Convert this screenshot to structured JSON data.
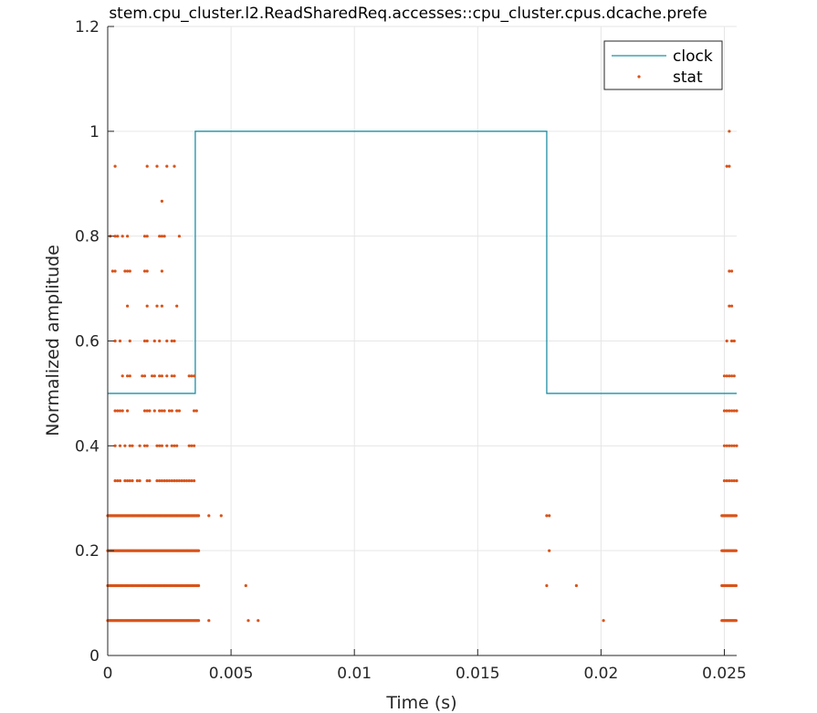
{
  "chart_data": {
    "type": "line",
    "title": "stem.cpu_cluster.l2.ReadSharedReq.accesses::cpu_cluster.cpus.dcache.prefe",
    "xlabel": "Time (s)",
    "ylabel": "Normalized amplitude",
    "xlim": [
      0,
      0.0255
    ],
    "ylim": [
      0,
      1.2
    ],
    "x_ticks": [
      0,
      0.005,
      0.01,
      0.015,
      0.02,
      0.025
    ],
    "x_tick_labels": [
      "0",
      "0.005",
      "0.01",
      "0.015",
      "0.02",
      "0.025"
    ],
    "y_ticks": [
      0,
      0.2,
      0.4,
      0.6,
      0.8,
      1,
      1.2
    ],
    "y_tick_labels": [
      "0",
      "0.2",
      "0.4",
      "0.6",
      "0.8",
      "1",
      "1.2"
    ],
    "grid": true,
    "legend_position": "top-right",
    "series": [
      {
        "name": "clock",
        "style": "line",
        "color": "#1f8fa3",
        "x": [
          0,
          0.00355,
          0.00355,
          0.0178,
          0.0178,
          0.0255
        ],
        "y": [
          0.5,
          0.5,
          1,
          1,
          0.5,
          0.5
        ]
      },
      {
        "name": "stat",
        "style": "dots",
        "color": "#d95319",
        "bands": [
          {
            "y": 0.0667,
            "x_range": [
              0,
              0.0037
            ],
            "extra_x": [
              0.0041,
              0.0057,
              0.0061,
              0.0201
            ],
            "tail_range": [
              0.0249,
              0.0255
            ]
          },
          {
            "y": 0.1333,
            "x_range": [
              0,
              0.0037
            ],
            "extra_x": [
              0.0056,
              0.0178,
              0.019
            ],
            "tail_range": [
              0.0249,
              0.0255
            ]
          },
          {
            "y": 0.2,
            "x_range": [
              0,
              0.0037
            ],
            "extra_x": [
              0.0179
            ],
            "tail_range": [
              0.0249,
              0.0255
            ]
          },
          {
            "y": 0.2667,
            "x_range": [
              0,
              0.0037
            ],
            "extra_x": [
              0.0041,
              0.0046,
              0.0178,
              0.0179
            ],
            "tail_range": [
              0.0249,
              0.0255
            ]
          }
        ],
        "points": [
          {
            "y": 1.0,
            "x": [
              0.0252
            ]
          },
          {
            "y": 0.9333,
            "x": [
              0.0003,
              0.0016,
              0.002,
              0.0024,
              0.0027,
              0.0251,
              0.0252
            ]
          },
          {
            "y": 0.8667,
            "x": [
              0.0022
            ]
          },
          {
            "y": 0.8,
            "x": [
              0.0001,
              0.0003,
              0.0004,
              0.0006,
              0.0008,
              0.0015,
              0.0016,
              0.0021,
              0.0022,
              0.0023,
              0.0029
            ]
          },
          {
            "y": 0.7333,
            "x": [
              0.0002,
              0.0003,
              0.0007,
              0.0008,
              0.0009,
              0.0015,
              0.0016,
              0.0022,
              0.0252,
              0.0253
            ]
          },
          {
            "y": 0.6667,
            "x": [
              0.0008,
              0.0016,
              0.002,
              0.0022,
              0.0028,
              0.0252,
              0.0253
            ]
          },
          {
            "y": 0.6,
            "x": [
              0.0003,
              0.0005,
              0.0009,
              0.0015,
              0.0016,
              0.0019,
              0.0021,
              0.0024,
              0.0026,
              0.0027,
              0.0251,
              0.0253,
              0.0254
            ]
          },
          {
            "y": 0.5333,
            "x": [
              0.0006,
              0.0008,
              0.0009,
              0.0014,
              0.0015,
              0.0018,
              0.0019,
              0.0021,
              0.0022,
              0.0024,
              0.0026,
              0.0027,
              0.0033,
              0.0034,
              0.0035,
              0.025,
              0.0251,
              0.0252,
              0.0253,
              0.0254
            ]
          },
          {
            "y": 0.4667,
            "x": [
              0.0003,
              0.0004,
              0.0005,
              0.0006,
              0.0008,
              0.0015,
              0.0016,
              0.0017,
              0.0019,
              0.0021,
              0.0022,
              0.0023,
              0.0025,
              0.0026,
              0.0028,
              0.0029,
              0.0035,
              0.0036,
              0.025,
              0.0251,
              0.0252,
              0.0253,
              0.0254,
              0.0255
            ]
          },
          {
            "y": 0.4,
            "x": [
              0.0003,
              0.0005,
              0.0007,
              0.0009,
              0.001,
              0.0013,
              0.0015,
              0.0016,
              0.002,
              0.0021,
              0.0022,
              0.0024,
              0.0026,
              0.0027,
              0.0028,
              0.0033,
              0.0034,
              0.0035,
              0.025,
              0.0251,
              0.0252,
              0.0253,
              0.0254,
              0.0255
            ]
          },
          {
            "y": 0.3333,
            "x": [
              0.0003,
              0.0004,
              0.0005,
              0.0007,
              0.0008,
              0.0009,
              0.001,
              0.0012,
              0.0013,
              0.0016,
              0.0017,
              0.002,
              0.0021,
              0.0022,
              0.0023,
              0.0024,
              0.0025,
              0.0026,
              0.0027,
              0.0028,
              0.0029,
              0.003,
              0.0031,
              0.0032,
              0.0033,
              0.0034,
              0.0035,
              0.025,
              0.0251,
              0.0252,
              0.0253,
              0.0254,
              0.0255
            ]
          }
        ]
      }
    ]
  }
}
